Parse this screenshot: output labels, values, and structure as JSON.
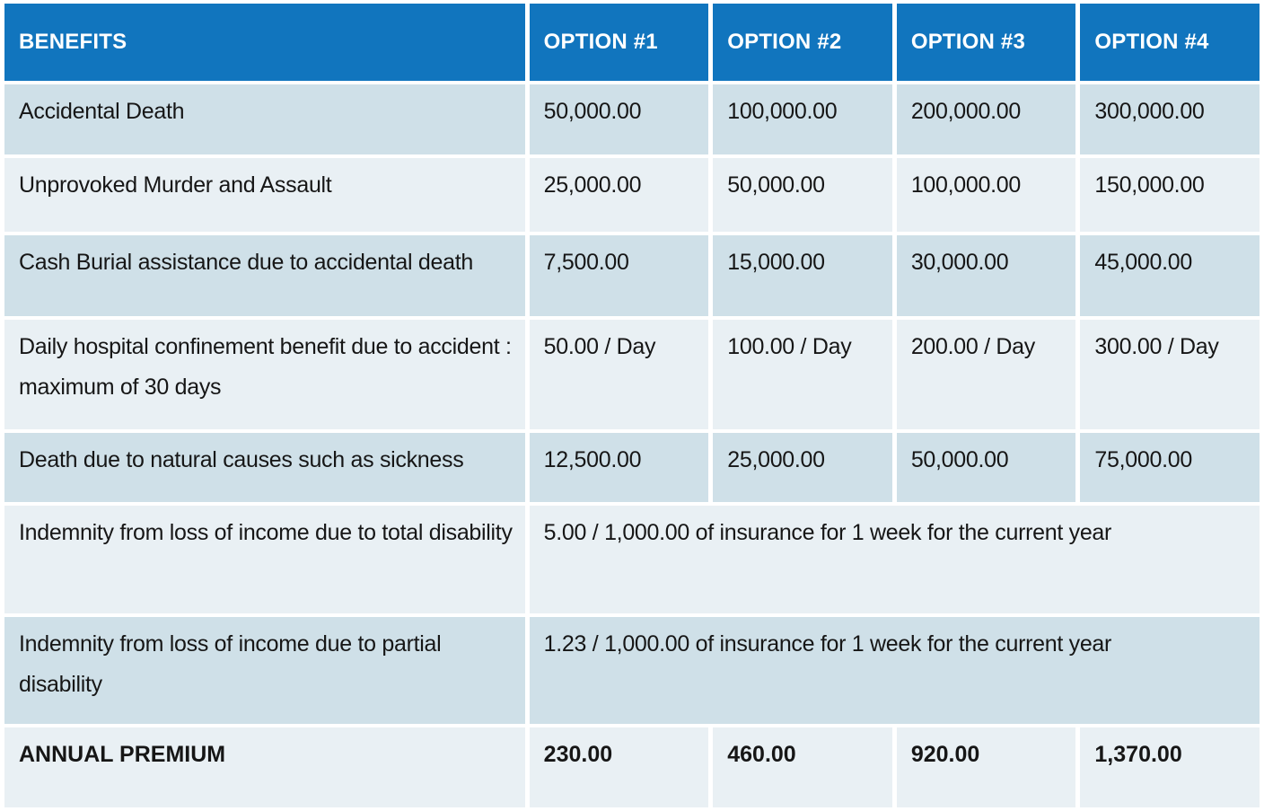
{
  "colors": {
    "header_bg": "#1175BE",
    "header_text": "#FFFFFF",
    "row_dark": "#CFE0E8",
    "row_light": "#E9F0F4",
    "body_text": "#161616",
    "separator": "#FFFFFF"
  },
  "table": {
    "columns": [
      "BENEFITS",
      "OPTION #1",
      "OPTION #2",
      "OPTION #3",
      "OPTION #4"
    ],
    "rows": [
      {
        "label": "Accidental  Death",
        "values": [
          "50,000.00",
          "100,000.00",
          "200,000.00",
          "300,000.00"
        ]
      },
      {
        "label": "Unprovoked Murder and Assault",
        "values": [
          "25,000.00",
          "50,000.00",
          "100,000.00",
          "150,000.00"
        ]
      },
      {
        "label": "Cash Burial assistance due to accidental death",
        "values": [
          "7,500.00",
          "15,000.00",
          "30,000.00",
          "45,000.00"
        ]
      },
      {
        "label": "Daily hospital confinement benefit due to accident : maximum of 30 days",
        "values": [
          "50.00 / Day",
          "100.00 / Day",
          "200.00 / Day",
          "300.00 / Day"
        ]
      },
      {
        "label": "Death due to natural causes such as sickness",
        "values": [
          "12,500.00",
          "25,000.00",
          "50,000.00",
          "75,000.00"
        ]
      },
      {
        "label": "Indemnity from loss of income due to total disability",
        "span_value": "5.00 / 1,000.00 of insurance for 1 week for the current year"
      },
      {
        "label": "Indemnity from loss of income due to partial disability",
        "span_value": "1.23 / 1,000.00 of insurance for 1 week for the current year"
      },
      {
        "label": "ANNUAL PREMIUM",
        "values": [
          "230.00",
          "460.00",
          "920.00",
          "1,370.00"
        ],
        "bold": true
      }
    ]
  }
}
